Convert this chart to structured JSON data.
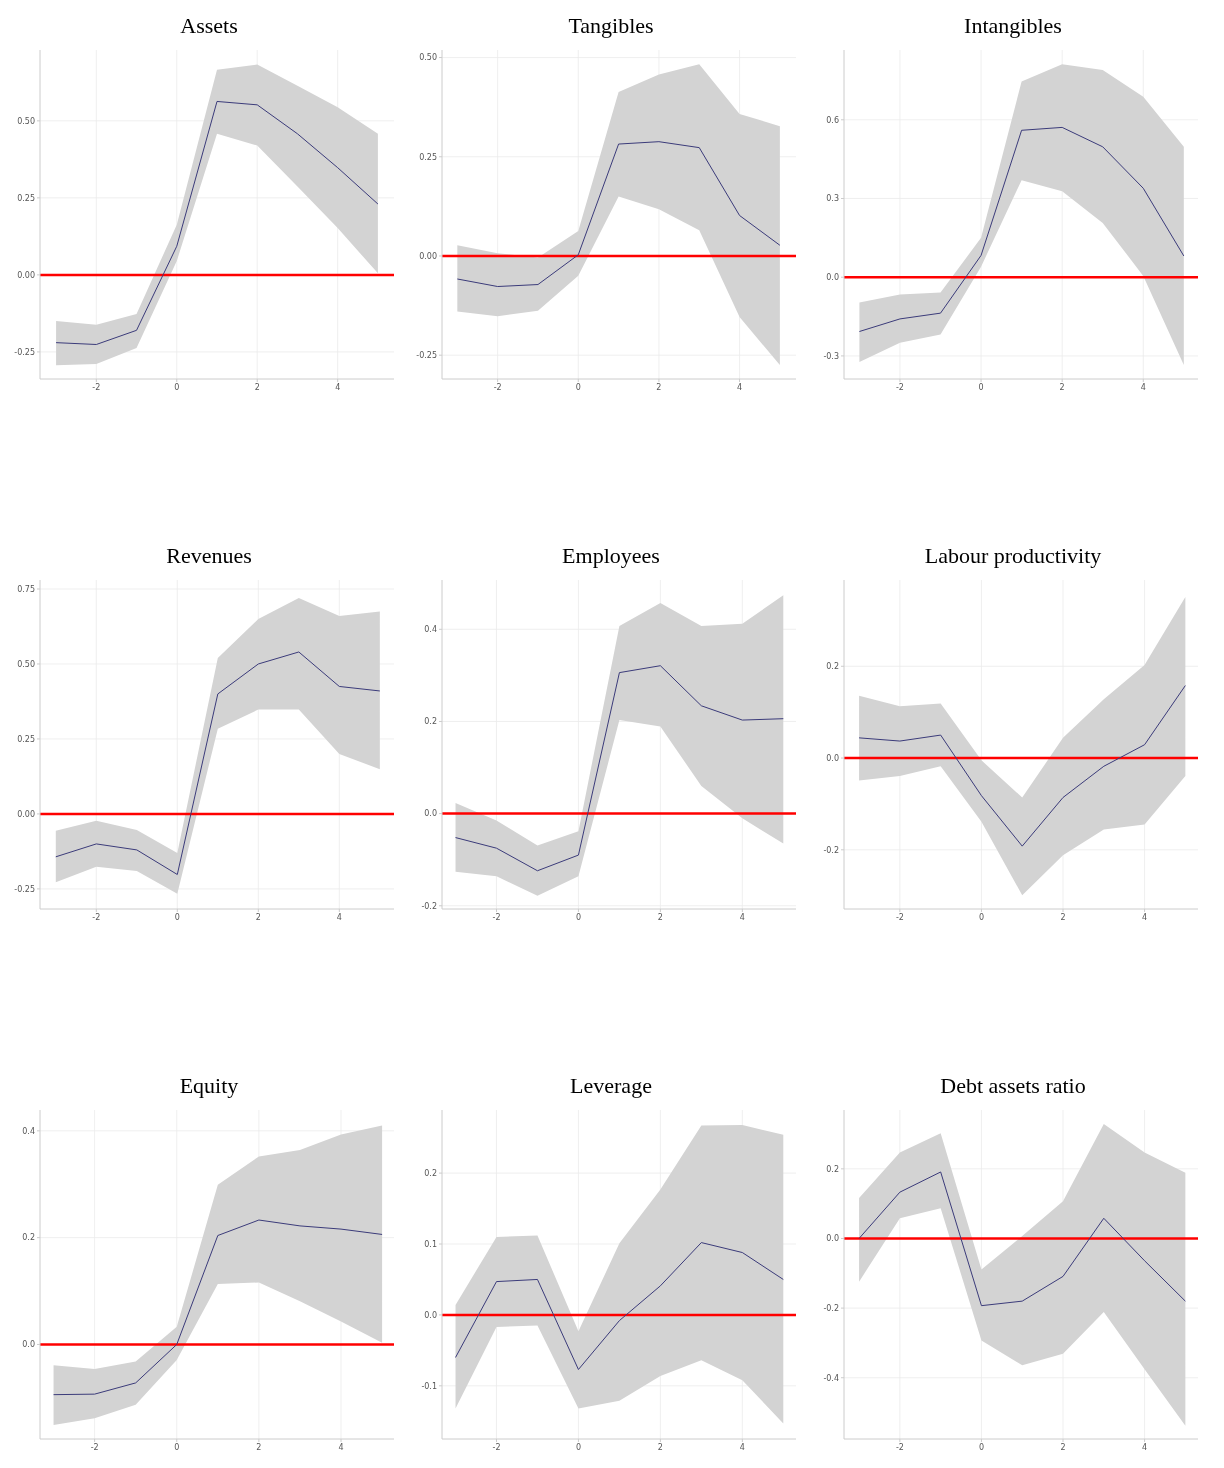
{
  "chart_data": [
    {
      "type": "line",
      "title": "Assets",
      "x": [
        -3,
        -2,
        -1,
        0,
        1,
        2,
        3,
        4,
        5
      ],
      "xlim": [
        -3.4,
        5.4
      ],
      "xticks": [
        -2,
        0,
        2,
        4
      ],
      "ylim": [
        -0.338,
        0.73
      ],
      "yticks": [
        {
          "value": -0.25,
          "label": "-0.25"
        },
        {
          "value": 0,
          "label": "0.00"
        },
        {
          "value": 0.25,
          "label": "0.25"
        },
        {
          "value": 0.5,
          "label": "0.50"
        }
      ],
      "grid": true,
      "ref_lines": [
        {
          "axis": "y",
          "value": 0,
          "color": "#ff0000"
        }
      ],
      "series": [
        {
          "color": "#3b3b7a",
          "values": [
            -0.22,
            -0.226,
            -0.18,
            0.093,
            0.563,
            0.552,
            0.458,
            0.348,
            0.23
          ],
          "lower": [
            -0.293,
            -0.289,
            -0.237,
            0.045,
            0.458,
            0.42,
            0.287,
            0.152,
            0.005
          ],
          "upper": [
            -0.15,
            -0.162,
            -0.127,
            0.163,
            0.666,
            0.683,
            0.614,
            0.544,
            0.458
          ]
        }
      ]
    },
    {
      "type": "line",
      "title": "Tangibles",
      "x": [
        -3,
        -2,
        -1,
        0,
        1,
        2,
        3,
        4,
        5
      ],
      "xlim": [
        -3.38,
        5.4
      ],
      "xticks": [
        -2,
        0,
        2,
        4
      ],
      "ylim": [
        -0.31,
        0.519
      ],
      "yticks": [
        {
          "value": -0.25,
          "label": "-0.25"
        },
        {
          "value": 0,
          "label": "0.00"
        },
        {
          "value": 0.25,
          "label": "0.25"
        },
        {
          "value": 0.5,
          "label": "0.50"
        }
      ],
      "grid": true,
      "ref_lines": [
        {
          "axis": "y",
          "value": 0,
          "color": "#ff0000"
        }
      ],
      "series": [
        {
          "color": "#3b3b7a",
          "values": [
            -0.058,
            -0.077,
            -0.072,
            0.003,
            0.282,
            0.288,
            0.273,
            0.102,
            0.027
          ],
          "lower": [
            -0.14,
            -0.152,
            -0.138,
            -0.05,
            0.15,
            0.118,
            0.065,
            -0.154,
            -0.275
          ],
          "upper": [
            0.027,
            0.007,
            -0.004,
            0.063,
            0.413,
            0.457,
            0.483,
            0.358,
            0.327
          ]
        }
      ]
    },
    {
      "type": "line",
      "title": "Intangibles",
      "x": [
        -3,
        -2,
        -1,
        0,
        1,
        2,
        3,
        4,
        5
      ],
      "xlim": [
        -3.38,
        5.35
      ],
      "xticks": [
        -2,
        0,
        2,
        4
      ],
      "ylim": [
        -0.388,
        0.866
      ],
      "yticks": [
        {
          "value": -0.3,
          "label": "-0.3"
        },
        {
          "value": 0,
          "label": "0.0"
        },
        {
          "value": 0.3,
          "label": "0.3"
        },
        {
          "value": 0.6,
          "label": "0.6"
        }
      ],
      "grid": true,
      "ref_lines": [
        {
          "axis": "y",
          "value": 0,
          "color": "#ff0000"
        }
      ],
      "series": [
        {
          "color": "#3b3b7a",
          "values": [
            -0.207,
            -0.159,
            -0.137,
            0.083,
            0.56,
            0.571,
            0.497,
            0.339,
            0.081
          ],
          "lower": [
            -0.323,
            -0.25,
            -0.218,
            0.04,
            0.37,
            0.328,
            0.207,
            0.005,
            -0.335
          ],
          "upper": [
            -0.096,
            -0.066,
            -0.058,
            0.15,
            0.746,
            0.812,
            0.79,
            0.688,
            0.497
          ]
        }
      ]
    },
    {
      "type": "line",
      "title": "Revenues",
      "x": [
        -3,
        -2,
        -1,
        0,
        1,
        2,
        3,
        4,
        5
      ],
      "xlim": [
        -3.39,
        5.35
      ],
      "xticks": [
        -2,
        0,
        2,
        4
      ],
      "ylim": [
        -0.317,
        0.78
      ],
      "yticks": [
        {
          "value": -0.25,
          "label": "-0.25"
        },
        {
          "value": 0,
          "label": "0.00"
        },
        {
          "value": 0.25,
          "label": "0.25"
        },
        {
          "value": 0.5,
          "label": "0.50"
        },
        {
          "value": 0.75,
          "label": "0.75"
        }
      ],
      "grid": true,
      "ref_lines": [
        {
          "axis": "y",
          "value": 0,
          "color": "#ff0000"
        }
      ],
      "series": [
        {
          "color": "#3b3b7a",
          "values": [
            -0.143,
            -0.1,
            -0.12,
            -0.202,
            0.4,
            0.5,
            0.54,
            0.425,
            0.41
          ],
          "lower": [
            -0.228,
            -0.176,
            -0.19,
            -0.266,
            0.284,
            0.348,
            0.348,
            0.2,
            0.149
          ],
          "upper": [
            -0.056,
            -0.023,
            -0.054,
            -0.13,
            0.52,
            0.65,
            0.72,
            0.66,
            0.675
          ]
        }
      ]
    },
    {
      "type": "line",
      "title": "Employees",
      "x": [
        -3,
        -2,
        -1,
        0,
        1,
        2,
        3,
        4,
        5
      ],
      "xlim": [
        -3.33,
        5.31
      ],
      "xticks": [
        -2,
        0,
        2,
        4
      ],
      "ylim": [
        -0.207,
        0.507
      ],
      "yticks": [
        {
          "value": -0.2,
          "label": "-0.2"
        },
        {
          "value": 0,
          "label": "0.0"
        },
        {
          "value": 0.2,
          "label": "0.2"
        },
        {
          "value": 0.4,
          "label": "0.4"
        }
      ],
      "grid": true,
      "ref_lines": [
        {
          "axis": "y",
          "value": 0,
          "color": "#ff0000"
        }
      ],
      "series": [
        {
          "color": "#3b3b7a",
          "values": [
            -0.052,
            -0.075,
            -0.124,
            -0.09,
            0.306,
            0.321,
            0.234,
            0.203,
            0.206
          ],
          "lower": [
            -0.126,
            -0.136,
            -0.178,
            -0.136,
            0.203,
            0.189,
            0.06,
            -0.01,
            -0.065
          ],
          "upper": [
            0.023,
            -0.015,
            -0.069,
            -0.038,
            0.407,
            0.457,
            0.407,
            0.412,
            0.474
          ]
        }
      ]
    },
    {
      "type": "line",
      "title": "Labour productivity",
      "x": [
        -3,
        -2,
        -1,
        0,
        1,
        2,
        3,
        4,
        5
      ],
      "xlim": [
        -3.37,
        5.31
      ],
      "xticks": [
        -2,
        0,
        2,
        4
      ],
      "ylim": [
        -0.329,
        0.388
      ],
      "yticks": [
        {
          "value": -0.2,
          "label": "-0.2"
        },
        {
          "value": 0,
          "label": "0.0"
        },
        {
          "value": 0.2,
          "label": "0.2"
        }
      ],
      "grid": true,
      "ref_lines": [
        {
          "axis": "y",
          "value": 0,
          "color": "#ff0000"
        }
      ],
      "series": [
        {
          "color": "#3b3b7a",
          "values": [
            0.044,
            0.037,
            0.05,
            -0.082,
            -0.192,
            -0.086,
            -0.018,
            0.029,
            0.158
          ],
          "lower": [
            -0.049,
            -0.039,
            -0.018,
            -0.139,
            -0.299,
            -0.212,
            -0.156,
            -0.145,
            -0.039
          ],
          "upper": [
            0.136,
            0.113,
            0.119,
            -0.005,
            -0.086,
            0.044,
            0.128,
            0.203,
            0.351
          ]
        }
      ]
    },
    {
      "type": "line",
      "title": "Equity",
      "x": [
        -3,
        -2,
        -1,
        0,
        1,
        2,
        3,
        4,
        5
      ],
      "xlim": [
        -3.33,
        5.29
      ],
      "xticks": [
        -2,
        0,
        2,
        4
      ],
      "ylim": [
        -0.177,
        0.439
      ],
      "yticks": [
        {
          "value": 0,
          "label": "0.0"
        },
        {
          "value": 0.2,
          "label": "0.2"
        },
        {
          "value": 0.4,
          "label": "0.4"
        }
      ],
      "grid": true,
      "ref_lines": [
        {
          "axis": "y",
          "value": 0,
          "color": "#ff0000"
        }
      ],
      "series": [
        {
          "color": "#3b3b7a",
          "values": [
            -0.094,
            -0.093,
            -0.072,
            0.0,
            0.204,
            0.233,
            0.222,
            0.216,
            0.206
          ],
          "lower": [
            -0.151,
            -0.138,
            -0.113,
            -0.029,
            0.113,
            0.116,
            0.081,
            0.043,
            0.003
          ],
          "upper": [
            -0.039,
            -0.046,
            -0.032,
            0.033,
            0.299,
            0.352,
            0.364,
            0.393,
            0.41
          ]
        }
      ]
    },
    {
      "type": "line",
      "title": "Leverage",
      "x": [
        -3,
        -2,
        -1,
        0,
        1,
        2,
        3,
        4,
        5
      ],
      "xlim": [
        -3.33,
        5.31
      ],
      "xticks": [
        -2,
        0,
        2,
        4
      ],
      "ylim": [
        -0.175,
        0.289
      ],
      "yticks": [
        {
          "value": -0.1,
          "label": "-0.1"
        },
        {
          "value": 0,
          "label": "0.0"
        },
        {
          "value": 0.1,
          "label": "0.1"
        },
        {
          "value": 0.2,
          "label": "0.2"
        }
      ],
      "grid": true,
      "ref_lines": [
        {
          "axis": "y",
          "value": 0,
          "color": "#ff0000"
        }
      ],
      "series": [
        {
          "color": "#3b3b7a",
          "values": [
            -0.06,
            0.047,
            0.05,
            -0.077,
            -0.008,
            0.041,
            0.102,
            0.088,
            0.05
          ],
          "lower": [
            -0.132,
            -0.017,
            -0.015,
            -0.132,
            -0.121,
            -0.086,
            -0.064,
            -0.092,
            -0.153
          ],
          "upper": [
            0.014,
            0.11,
            0.112,
            -0.023,
            0.101,
            0.177,
            0.267,
            0.268,
            0.254
          ]
        }
      ]
    },
    {
      "type": "line",
      "title": "Debt assets ratio",
      "x": [
        -3,
        -2,
        -1,
        0,
        1,
        2,
        3,
        4,
        5
      ],
      "xlim": [
        -3.37,
        5.31
      ],
      "xticks": [
        -2,
        0,
        2,
        4
      ],
      "ylim": [
        -0.576,
        0.369
      ],
      "yticks": [
        {
          "value": -0.4,
          "label": "-0.4"
        },
        {
          "value": -0.2,
          "label": "-0.2"
        },
        {
          "value": 0,
          "label": "0.0"
        },
        {
          "value": 0.2,
          "label": "0.2"
        }
      ],
      "grid": true,
      "ref_lines": [
        {
          "axis": "y",
          "value": 0,
          "color": "#ff0000"
        }
      ],
      "series": [
        {
          "color": "#3b3b7a",
          "values": [
            0.0,
            0.133,
            0.191,
            -0.193,
            -0.18,
            -0.109,
            0.058,
            -0.064,
            -0.18
          ],
          "lower": [
            -0.124,
            0.058,
            0.087,
            -0.293,
            -0.364,
            -0.331,
            -0.211,
            -0.376,
            -0.538
          ],
          "upper": [
            0.116,
            0.247,
            0.302,
            -0.089,
            0.007,
            0.107,
            0.329,
            0.247,
            0.189
          ]
        }
      ]
    }
  ]
}
